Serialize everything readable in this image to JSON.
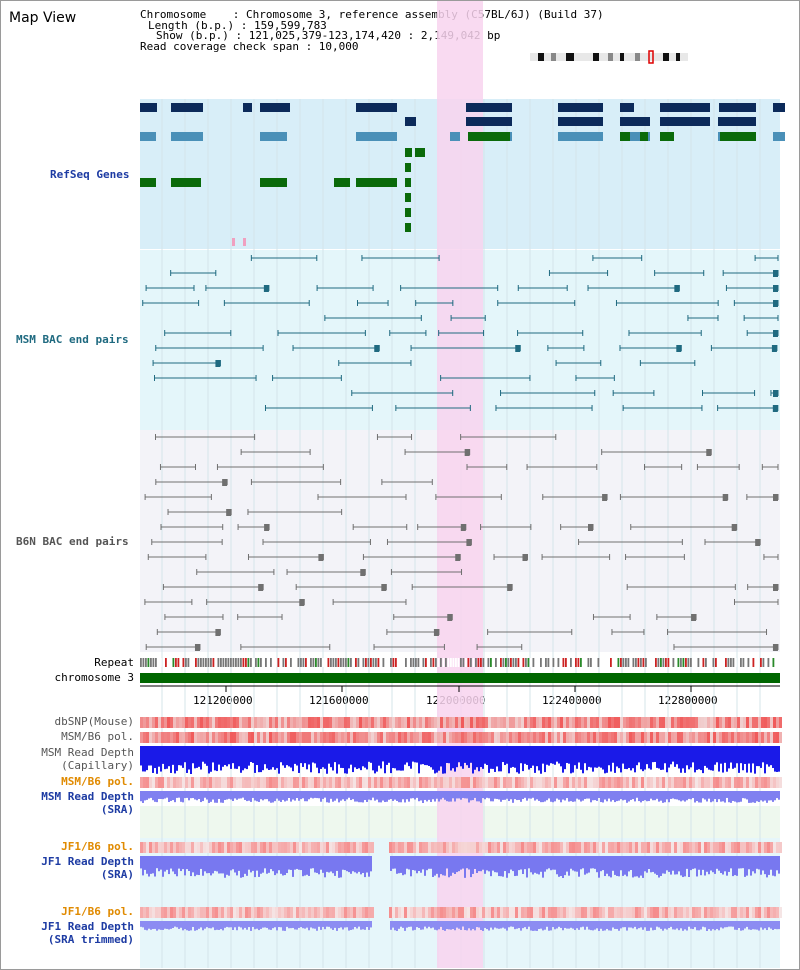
{
  "view_title": "Map View",
  "header": {
    "line1": "Chromosome    : Chromosome 3, reference assembly (C57BL/6J) (Build 37)",
    "line2": "Length (b.p.) : 159,599,783",
    "line3": "Show (b.p.) : 121,025,379-123,174,420 : 2,149,042 bp",
    "line4": "Read coverage check span : 10,000"
  },
  "tracks": {
    "refseq": "RefSeq Genes",
    "msm_bac": "MSM BAC end pairs",
    "b6n_bac": "B6N BAC end pairs",
    "repeat": "Repeat",
    "chrom": "chromosome 3",
    "dbsnp": "dbSNP(Mouse)",
    "msm_pol1": "MSM/B6 pol.",
    "msm_depth_cap_1": "MSM Read Depth",
    "msm_depth_cap_2": "(Capillary)",
    "msm_pol2": "MSM/B6 pol.",
    "msm_depth_sra_1": "MSM Read Depth",
    "msm_depth_sra_2": "(SRA)",
    "jf1_pol1": "JF1/B6 pol.",
    "jf1_depth_1": "JF1 Read Depth",
    "jf1_depth_2": "(SRA)",
    "jf1_pol2": "JF1/B6 pol.",
    "jf1_trim_1": "JF1 Read Depth",
    "jf1_trim_2": "(SRA trimmed)"
  },
  "axis": {
    "ticks": [
      "121200000",
      "121600000",
      "122000000",
      "122400000",
      "122800000"
    ]
  },
  "colors": {
    "refseq_bg": "#d8eef8",
    "msm_bg": "#e4f6fa",
    "b6n_bg": "#f3f3f8",
    "highlight": "#f8d4ee",
    "chrom_bar": "#006600",
    "navy_gene": "#0c2a5a",
    "teal_gene": "#4a90b8",
    "green_gene": "#0a6a0a"
  }
}
